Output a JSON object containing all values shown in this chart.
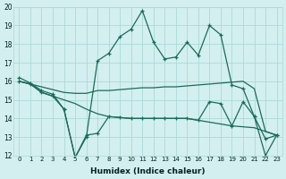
{
  "xlabel": "Humidex (Indice chaleur)",
  "x": [
    0,
    1,
    2,
    3,
    4,
    5,
    6,
    7,
    8,
    9,
    10,
    11,
    12,
    13,
    14,
    15,
    16,
    17,
    18,
    19,
    20,
    21,
    22,
    23
  ],
  "line_top": [
    16.2,
    15.9,
    15.5,
    15.3,
    14.5,
    11.9,
    13.0,
    17.1,
    17.5,
    18.4,
    18.8,
    19.8,
    18.1,
    17.2,
    17.3,
    18.1,
    17.4,
    19.0,
    18.5,
    15.8,
    15.6,
    14.1,
    12.9,
    13.1
  ],
  "line_upper_flat": [
    16.0,
    15.85,
    15.7,
    15.55,
    15.4,
    15.35,
    15.35,
    15.5,
    15.5,
    15.55,
    15.6,
    15.65,
    15.65,
    15.7,
    15.7,
    15.75,
    15.8,
    15.85,
    15.9,
    15.95,
    16.0,
    15.6,
    13.3,
    13.1
  ],
  "line_mid_flat": [
    16.0,
    15.85,
    15.4,
    15.2,
    15.0,
    14.8,
    14.5,
    14.25,
    14.1,
    14.05,
    14.0,
    14.0,
    14.0,
    14.0,
    14.0,
    14.0,
    13.9,
    13.8,
    13.7,
    13.6,
    13.55,
    13.5,
    13.3,
    13.1
  ],
  "line_low_jagged": [
    16.0,
    15.85,
    15.4,
    15.2,
    14.5,
    11.9,
    13.1,
    13.2,
    14.1,
    14.05,
    14.0,
    14.0,
    14.0,
    14.0,
    14.0,
    14.0,
    13.9,
    14.9,
    14.8,
    13.6,
    14.9,
    14.1,
    12.0,
    13.1
  ],
  "ylim": [
    12,
    20
  ],
  "yticks": [
    12,
    13,
    14,
    15,
    16,
    17,
    18,
    19,
    20
  ],
  "xticks": [
    0,
    1,
    2,
    3,
    4,
    5,
    6,
    7,
    8,
    9,
    10,
    11,
    12,
    13,
    14,
    15,
    16,
    17,
    18,
    19,
    20,
    21,
    22,
    23
  ],
  "line_color": "#1a6b5a",
  "bg_color": "#d4efef",
  "grid_color": "#aadada"
}
